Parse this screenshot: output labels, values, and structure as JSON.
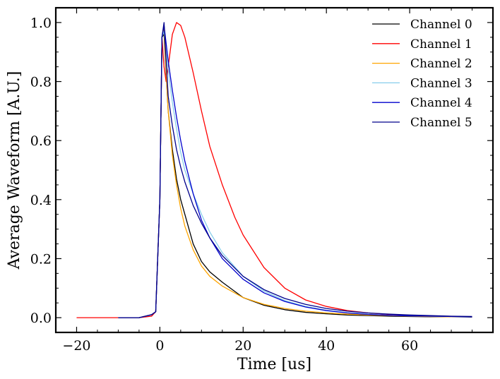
{
  "chart_data": {
    "type": "line",
    "title": "",
    "xlabel": "Time [us]",
    "ylabel": "Average Waveform [A.U.]",
    "xlim": [
      -25,
      80
    ],
    "ylim": [
      -0.05,
      1.05
    ],
    "xticks": [
      -20,
      0,
      20,
      40,
      60
    ],
    "xtick_labels": [
      "−20",
      "0",
      "20",
      "40",
      "60"
    ],
    "yticks": [
      0.0,
      0.2,
      0.4,
      0.6,
      0.8,
      1.0
    ],
    "ytick_labels": [
      "0.0",
      "0.2",
      "0.4",
      "0.6",
      "0.8",
      "1.0"
    ],
    "grid": false,
    "legend_position": "top-right",
    "series": [
      {
        "name": "Channel 0",
        "color": "#000000",
        "x": [
          -10,
          -5,
          -2,
          -1,
          0,
          0.5,
          1,
          2,
          3,
          4,
          5,
          6,
          8,
          10,
          12,
          15,
          20,
          25,
          30,
          35,
          40,
          45,
          50,
          55,
          60,
          65,
          70,
          75
        ],
        "y": [
          0,
          0,
          0.01,
          0.02,
          0.4,
          0.95,
          0.96,
          0.7,
          0.57,
          0.47,
          0.4,
          0.35,
          0.25,
          0.19,
          0.155,
          0.12,
          0.068,
          0.042,
          0.027,
          0.018,
          0.013,
          0.009,
          0.007,
          0.005,
          0.004,
          0.003,
          0.003,
          0.002
        ]
      },
      {
        "name": "Channel 1",
        "color": "#ff0000",
        "x": [
          -20,
          -5,
          -2,
          -1,
          0,
          0.5,
          1,
          1.5,
          2,
          3,
          4,
          5,
          6,
          8,
          10,
          12,
          15,
          18,
          20,
          25,
          30,
          35,
          40,
          45,
          50,
          55,
          60,
          65,
          70,
          75
        ],
        "y": [
          0,
          0,
          0.005,
          0.02,
          0.4,
          0.95,
          0.85,
          0.8,
          0.85,
          0.96,
          1.0,
          0.99,
          0.95,
          0.83,
          0.7,
          0.58,
          0.45,
          0.34,
          0.28,
          0.17,
          0.1,
          0.06,
          0.038,
          0.024,
          0.016,
          0.011,
          0.008,
          0.006,
          0.004,
          0.003
        ]
      },
      {
        "name": "Channel 2",
        "color": "#ffa500",
        "x": [
          -10,
          -5,
          -2,
          -1,
          0,
          0.5,
          1,
          2,
          3,
          4,
          5,
          6,
          8,
          10,
          12,
          15,
          20,
          25,
          30,
          35,
          40,
          45,
          50,
          55,
          60,
          65,
          70,
          75
        ],
        "y": [
          0,
          0,
          0.01,
          0.02,
          0.4,
          0.95,
          0.98,
          0.7,
          0.55,
          0.45,
          0.37,
          0.31,
          0.23,
          0.175,
          0.14,
          0.107,
          0.068,
          0.045,
          0.031,
          0.022,
          0.016,
          0.012,
          0.009,
          0.007,
          0.005,
          0.004,
          0.003,
          0.003
        ]
      },
      {
        "name": "Channel 3",
        "color": "#87ceeb",
        "x": [
          -10,
          -5,
          -2,
          -1,
          0,
          0.5,
          1,
          2,
          3,
          4,
          5,
          6,
          8,
          10,
          12,
          15,
          20,
          25,
          30,
          35,
          40,
          45,
          50,
          55,
          60,
          65,
          70,
          75
        ],
        "y": [
          0,
          0,
          0.01,
          0.02,
          0.4,
          0.95,
          0.97,
          0.84,
          0.73,
          0.64,
          0.56,
          0.5,
          0.42,
          0.35,
          0.29,
          0.22,
          0.14,
          0.09,
          0.058,
          0.038,
          0.025,
          0.017,
          0.012,
          0.008,
          0.006,
          0.005,
          0.004,
          0.003
        ]
      },
      {
        "name": "Channel 4",
        "color": "#0000cd",
        "x": [
          -10,
          -5,
          -2,
          -1,
          0,
          0.5,
          1,
          2,
          3,
          4,
          5,
          6,
          8,
          10,
          12,
          15,
          20,
          25,
          30,
          35,
          40,
          45,
          50,
          55,
          60,
          65,
          70,
          75
        ],
        "y": [
          0,
          0,
          0.01,
          0.02,
          0.4,
          0.95,
          0.99,
          0.87,
          0.77,
          0.68,
          0.6,
          0.53,
          0.42,
          0.33,
          0.27,
          0.2,
          0.13,
          0.084,
          0.055,
          0.036,
          0.024,
          0.016,
          0.011,
          0.008,
          0.006,
          0.005,
          0.004,
          0.003
        ]
      },
      {
        "name": "Channel 5",
        "color": "#00008b",
        "x": [
          -10,
          -5,
          -2,
          -1,
          0,
          0.5,
          1,
          2,
          3,
          4,
          5,
          6,
          8,
          10,
          12,
          15,
          20,
          25,
          30,
          35,
          40,
          45,
          50,
          55,
          60,
          65,
          70,
          75
        ],
        "y": [
          0,
          0,
          0.01,
          0.02,
          0.4,
          0.95,
          1.0,
          0.75,
          0.65,
          0.57,
          0.51,
          0.46,
          0.38,
          0.32,
          0.27,
          0.21,
          0.14,
          0.095,
          0.065,
          0.045,
          0.031,
          0.022,
          0.016,
          0.012,
          0.009,
          0.007,
          0.005,
          0.004
        ]
      }
    ]
  }
}
